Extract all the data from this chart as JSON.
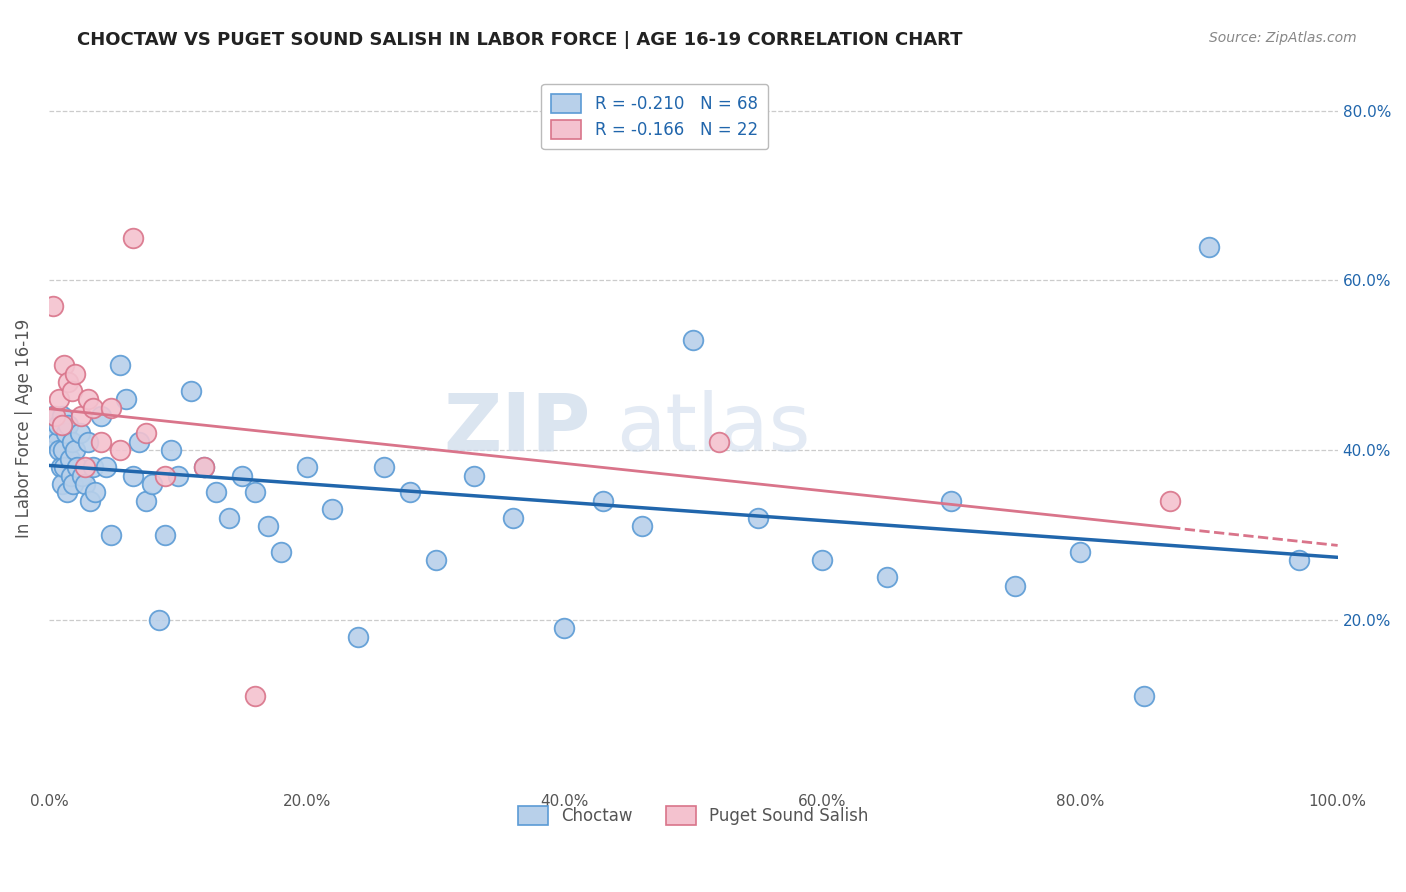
{
  "title": "CHOCTAW VS PUGET SOUND SALISH IN LABOR FORCE | AGE 16-19 CORRELATION CHART",
  "source": "Source: ZipAtlas.com",
  "ylabel": "In Labor Force | Age 16-19",
  "xlim": [
    0.0,
    1.0
  ],
  "ylim": [
    0.0,
    0.85
  ],
  "xticks": [
    0.0,
    0.2,
    0.4,
    0.6,
    0.8,
    1.0
  ],
  "xtick_labels": [
    "0.0%",
    "20.0%",
    "40.0%",
    "60.0%",
    "80.0%",
    "100.0%"
  ],
  "ytick_positions": [
    0.2,
    0.4,
    0.6,
    0.8
  ],
  "ytick_labels": [
    "20.0%",
    "40.0%",
    "60.0%",
    "80.0%"
  ],
  "background_color": "#ffffff",
  "grid_color": "#cccccc",
  "watermark_zip": "ZIP",
  "watermark_atlas": "atlas",
  "choctaw_fill_color": "#b8d0ea",
  "choctaw_edge_color": "#5b9bd5",
  "puget_fill_color": "#f4c2cf",
  "puget_edge_color": "#d9748a",
  "choctaw_line_color": "#2166ac",
  "puget_line_color": "#d9748a",
  "legend_choctaw_R": "-0.210",
  "legend_choctaw_N": "68",
  "legend_puget_R": "-0.166",
  "legend_puget_N": "22",
  "choctaw_x": [
    0.003,
    0.005,
    0.006,
    0.007,
    0.008,
    0.009,
    0.01,
    0.01,
    0.011,
    0.012,
    0.013,
    0.014,
    0.015,
    0.016,
    0.017,
    0.018,
    0.019,
    0.02,
    0.022,
    0.024,
    0.026,
    0.028,
    0.03,
    0.032,
    0.034,
    0.036,
    0.04,
    0.044,
    0.048,
    0.055,
    0.06,
    0.065,
    0.07,
    0.075,
    0.08,
    0.085,
    0.09,
    0.095,
    0.1,
    0.11,
    0.12,
    0.13,
    0.14,
    0.15,
    0.16,
    0.17,
    0.18,
    0.2,
    0.22,
    0.24,
    0.26,
    0.28,
    0.3,
    0.33,
    0.36,
    0.4,
    0.43,
    0.46,
    0.5,
    0.55,
    0.6,
    0.65,
    0.7,
    0.75,
    0.8,
    0.85,
    0.9,
    0.97
  ],
  "choctaw_y": [
    0.44,
    0.42,
    0.41,
    0.43,
    0.4,
    0.38,
    0.44,
    0.36,
    0.4,
    0.38,
    0.42,
    0.35,
    0.43,
    0.39,
    0.37,
    0.41,
    0.36,
    0.4,
    0.38,
    0.42,
    0.37,
    0.36,
    0.41,
    0.34,
    0.38,
    0.35,
    0.44,
    0.38,
    0.3,
    0.5,
    0.46,
    0.37,
    0.41,
    0.34,
    0.36,
    0.2,
    0.3,
    0.4,
    0.37,
    0.47,
    0.38,
    0.35,
    0.32,
    0.37,
    0.35,
    0.31,
    0.28,
    0.38,
    0.33,
    0.18,
    0.38,
    0.35,
    0.27,
    0.37,
    0.32,
    0.19,
    0.34,
    0.31,
    0.53,
    0.32,
    0.27,
    0.25,
    0.34,
    0.24,
    0.28,
    0.11,
    0.64,
    0.27
  ],
  "puget_x": [
    0.003,
    0.005,
    0.008,
    0.01,
    0.012,
    0.015,
    0.018,
    0.02,
    0.025,
    0.028,
    0.03,
    0.034,
    0.04,
    0.048,
    0.055,
    0.065,
    0.075,
    0.09,
    0.12,
    0.16,
    0.52,
    0.87
  ],
  "puget_y": [
    0.57,
    0.44,
    0.46,
    0.43,
    0.5,
    0.48,
    0.47,
    0.49,
    0.44,
    0.38,
    0.46,
    0.45,
    0.41,
    0.45,
    0.4,
    0.65,
    0.42,
    0.37,
    0.38,
    0.11,
    0.41,
    0.34
  ]
}
